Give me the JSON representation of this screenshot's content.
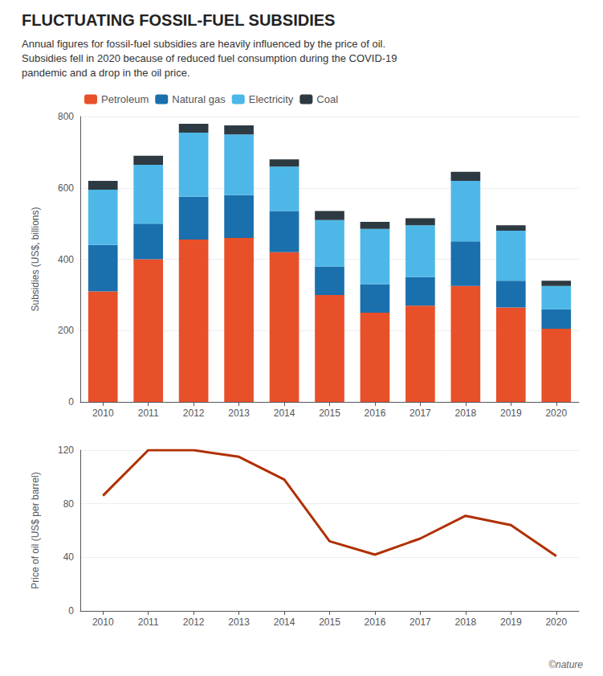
{
  "chart_data": [
    {
      "type": "bar",
      "title": "FLUCTUATING FOSSIL-FUEL SUBSIDIES",
      "subtitle": "Annual figures for fossil-fuel subsidies are heavily influenced by the price of oil.\nSubsidies fell in 2020 because of reduced fuel consumption during the COVID-19\npandemic and a drop in the oil price.",
      "annotations": [
        "©nature"
      ],
      "categories": [
        "2010",
        "2011",
        "2012",
        "2013",
        "2014",
        "2015",
        "2016",
        "2017",
        "2018",
        "2019",
        "2020"
      ],
      "series": [
        {
          "name": "Petroleum",
          "color": "#e8502a",
          "values": [
            310,
            400,
            455,
            460,
            420,
            300,
            250,
            270,
            325,
            265,
            205
          ]
        },
        {
          "name": "Natural gas",
          "color": "#1a6fad",
          "values": [
            130,
            100,
            120,
            120,
            115,
            80,
            80,
            80,
            125,
            75,
            55
          ]
        },
        {
          "name": "Electricity",
          "color": "#4db8e8",
          "values": [
            155,
            165,
            180,
            170,
            125,
            130,
            155,
            145,
            170,
            140,
            65
          ]
        },
        {
          "name": "Coal",
          "color": "#2e3a42",
          "values": [
            25,
            25,
            25,
            25,
            20,
            25,
            20,
            20,
            25,
            15,
            15
          ]
        }
      ],
      "stacked": true,
      "ylabel": "Subsidies (US$, billions)",
      "ylim": [
        0,
        800
      ],
      "yticks": [
        0,
        200,
        400,
        600,
        800
      ],
      "grid": true,
      "legend": "top"
    },
    {
      "type": "line",
      "categories": [
        "2010",
        "2011",
        "2012",
        "2013",
        "2014",
        "2015",
        "2016",
        "2017",
        "2018",
        "2019",
        "2020"
      ],
      "values": [
        86,
        120,
        120,
        115,
        98,
        52,
        42,
        54,
        71,
        64,
        41
      ],
      "color": "#b03000",
      "ylabel": "Price of oil (US$ per barrel)",
      "ylim": [
        0,
        120
      ],
      "yticks": [
        0,
        40,
        80,
        120
      ],
      "grid": true
    }
  ]
}
